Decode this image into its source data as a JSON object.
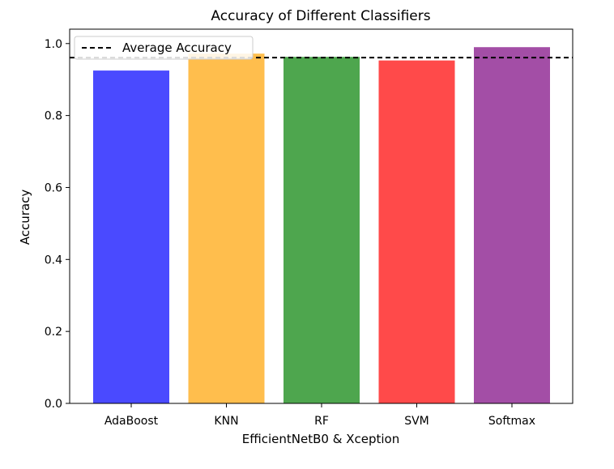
{
  "chart_data": {
    "type": "bar",
    "title": "Accuracy of Different Classifiers",
    "xlabel": "EfficientNetB0 & Xception",
    "ylabel": "Accuracy",
    "categories": [
      "AdaBoost",
      "KNN",
      "RF",
      "SVM",
      "Softmax"
    ],
    "values": [
      0.925,
      0.972,
      0.963,
      0.953,
      0.99
    ],
    "colors": [
      "#4a4aff",
      "#ffbe4d",
      "#4ea64e",
      "#ff4a4a",
      "#a34ea6"
    ],
    "ylim": [
      0,
      1.04
    ],
    "yticks": [
      "0.0",
      "0.2",
      "0.4",
      "0.6",
      "0.8",
      "1.0"
    ],
    "ytick_values": [
      0,
      0.2,
      0.4,
      0.6,
      0.8,
      1.0
    ],
    "reference_line": {
      "label": "Average Accuracy",
      "value": 0.961,
      "style": "dashed",
      "color": "#000000"
    },
    "legend": {
      "placement": "upper-left",
      "entries": [
        "Average Accuracy"
      ]
    },
    "grid": false
  }
}
